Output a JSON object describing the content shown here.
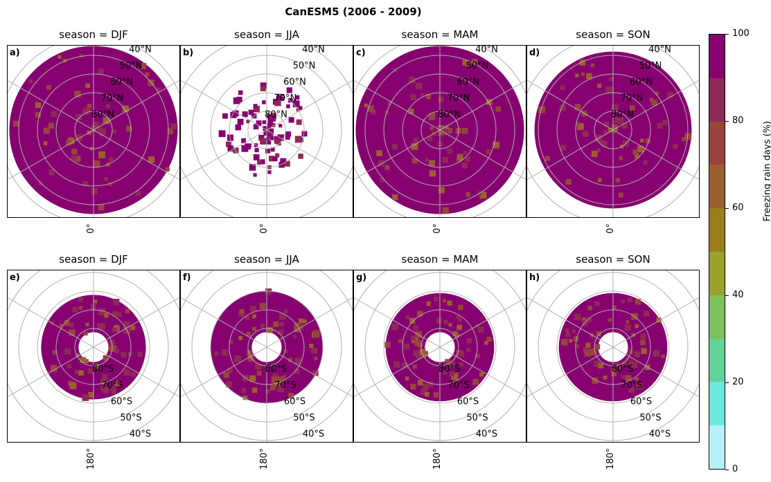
{
  "title": "CanESM5 (2006 - 2009)",
  "chart_data": {
    "type": "heatmap",
    "projection": "polar stereographic",
    "panels": [
      {
        "label": "a)",
        "title": "season = DJF",
        "hemisphere": "N",
        "lon_label": "0°",
        "lat_extent": [
          45,
          90
        ]
      },
      {
        "label": "b)",
        "title": "season = JJA",
        "hemisphere": "N",
        "lon_label": "0°",
        "lat_extent": [
          65,
          90
        ]
      },
      {
        "label": "c)",
        "title": "season = MAM",
        "hemisphere": "N",
        "lon_label": "0°",
        "lat_extent": [
          45,
          90
        ]
      },
      {
        "label": "d)",
        "title": "season = SON",
        "hemisphere": "N",
        "lon_label": "0°",
        "lat_extent": [
          48,
          90
        ]
      },
      {
        "label": "e)",
        "title": "season = DJF",
        "hemisphere": "S",
        "lon_label": "180°",
        "lat_extent": [
          -82,
          -62
        ]
      },
      {
        "label": "f)",
        "title": "season = JJA",
        "hemisphere": "S",
        "lon_label": "180°",
        "lat_extent": [
          -82,
          -60
        ]
      },
      {
        "label": "g)",
        "title": "season = MAM",
        "hemisphere": "S",
        "lon_label": "180°",
        "lat_extent": [
          -82,
          -61
        ]
      },
      {
        "label": "h)",
        "title": "season = SON",
        "hemisphere": "S",
        "lon_label": "180°",
        "lat_extent": [
          -82,
          -61
        ]
      }
    ],
    "lat_labels_n": [
      "80°N",
      "70°N",
      "60°N",
      "50°N",
      "40°N"
    ],
    "lat_labels_s": [
      "80°S",
      "70°S",
      "60°S",
      "50°S",
      "40°S"
    ],
    "colorbar": {
      "label": "Freezing rain days (%)",
      "range": [
        0,
        100
      ],
      "ticks": [
        "0",
        "20",
        "40",
        "60",
        "80",
        "100"
      ],
      "bins": [
        0,
        10,
        20,
        30,
        40,
        50,
        60,
        70,
        80,
        90,
        100
      ],
      "colors": [
        "#b8f0fa",
        "#6ce8dc",
        "#62d49a",
        "#7fbf5c",
        "#9aa22a",
        "#9a7e1c",
        "#9a5e30",
        "#97443e",
        "#8e2a55",
        "#870070"
      ]
    }
  }
}
